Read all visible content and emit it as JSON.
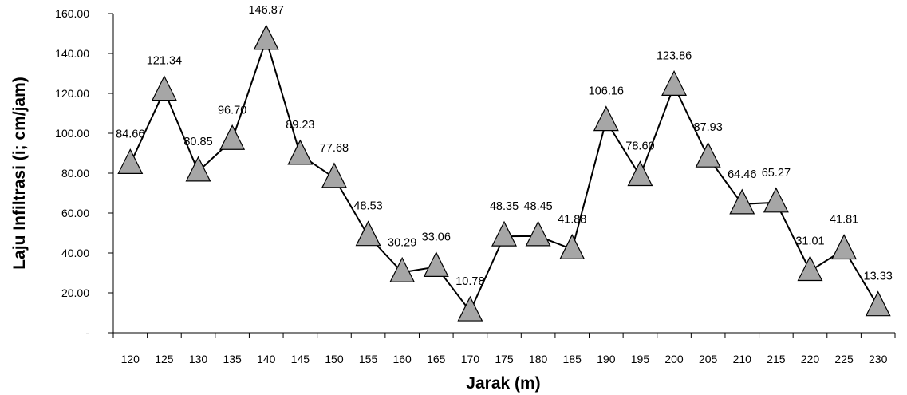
{
  "chart_data": {
    "type": "line",
    "title": "",
    "xlabel": "Jarak (m)",
    "ylabel": "Laju Infiltrasi (i; cm/jam)",
    "categories": [
      "120",
      "125",
      "130",
      "135",
      "140",
      "145",
      "150",
      "155",
      "160",
      "165",
      "170",
      "175",
      "180",
      "185",
      "190",
      "195",
      "200",
      "205",
      "210",
      "215",
      "220",
      "225",
      "230"
    ],
    "series": [
      {
        "values": [
          84.66,
          121.34,
          80.85,
          96.7,
          146.87,
          89.23,
          77.68,
          48.53,
          30.29,
          33.06,
          10.78,
          48.35,
          48.45,
          41.88,
          106.16,
          78.6,
          123.86,
          87.93,
          64.46,
          65.27,
          31.01,
          41.81,
          13.33
        ],
        "labels": [
          "84.66",
          "121.34",
          "80.85",
          "96.70",
          "146.87",
          "89.23",
          "77.68",
          "48.53",
          "30.29",
          "33.06",
          "10.78",
          "48.35",
          "48.45",
          "41.88",
          "106.16",
          "78.60",
          "123.86",
          "87.93",
          "64.46",
          "65.27",
          "31.01",
          "41.81",
          "13.33"
        ],
        "marker": "triangle",
        "marker_color": "#a6a6a6",
        "line_color": "#000000"
      }
    ],
    "ylim": [
      0,
      160
    ],
    "y_ticks": [
      0,
      20,
      40,
      60,
      80,
      100,
      120,
      140,
      160
    ],
    "y_tick_labels": [
      "-",
      "20.00",
      "40.00",
      "60.00",
      "80.00",
      "100.00",
      "120.00",
      "140.00",
      "160.00"
    ],
    "grid": false,
    "legend": "none"
  }
}
